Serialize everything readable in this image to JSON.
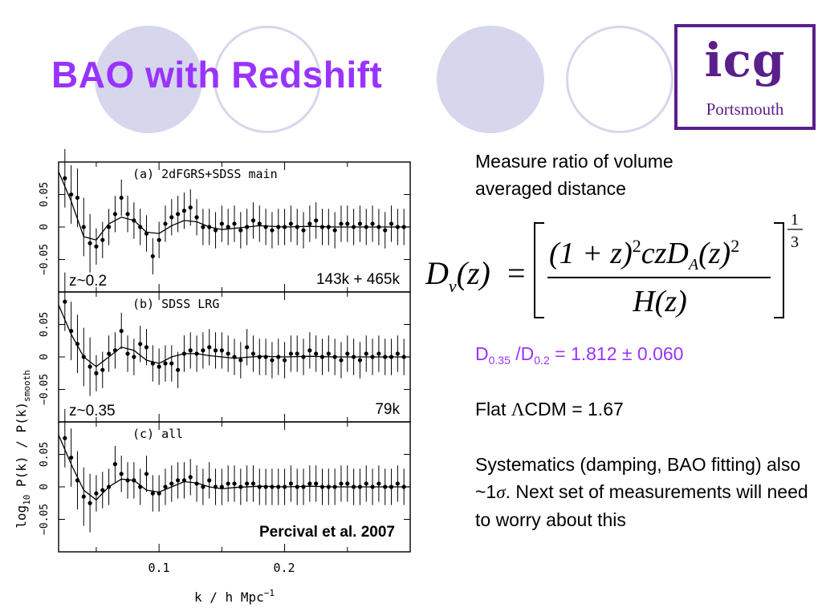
{
  "slide": {
    "title": "BAO with Redshift",
    "accent_color": "#9933ff",
    "circle_color": "#d6d6ec"
  },
  "logo": {
    "main": "icg",
    "sub": "Portsmouth",
    "color": "#5b1f8c"
  },
  "figure": {
    "panels": [
      {
        "label": "(a) 2dFGRS+SDSS main",
        "redshift": "z~0.2",
        "count": "143k + 465k"
      },
      {
        "label": "(b) SDSS LRG",
        "redshift": "z~0.35",
        "count": "79k"
      },
      {
        "label": "(c) all",
        "redshift": "",
        "count": ""
      }
    ],
    "credit": "Percival et al. 2007",
    "y_tick_labels": [
      "0.05",
      "0",
      "−0.05"
    ],
    "y_axis_label": "log",
    "y_axis_label_sub": "10",
    "y_axis_label_rest": "P(k) / P(k)",
    "y_axis_label_sub2": "smooth",
    "x_tick_labels": [
      "0.1",
      "0.2"
    ],
    "x_axis_label": "k / h Mpc",
    "x_axis_label_sup": "−1"
  },
  "text": {
    "intro": "Measure ratio of volume averaged distance",
    "ratio_D1": "D",
    "ratio_sub1": "0.35",
    "ratio_mid": " /D",
    "ratio_sub2": "0.2",
    "ratio_value": " = 1.812 ± 0.060",
    "lcdm_prefix": "Flat ",
    "lcdm_symbol": "Λ",
    "lcdm_suffix": "CDM = 1.67",
    "sys_1": "Systematics (damping, BAO fitting) also ~1",
    "sys_sigma": "σ",
    "sys_2": ". Next set of measurements will need to worry about this"
  },
  "formula": {
    "lhs_D": "D",
    "lhs_sub": "v",
    "lhs_arg": "(z)",
    "equals": "=",
    "num_a": "(1 + z)",
    "num_exp1": "2",
    "num_b": "czD",
    "num_sub": "A",
    "num_c": "(z)",
    "num_exp2": "2",
    "den": "H(z)",
    "pow_num": "1",
    "pow_den": "3"
  },
  "chart_data": {
    "type": "scatter",
    "xlabel": "k / h Mpc^-1",
    "ylabel": "log10 P(k) / P(k)smooth",
    "xlim": [
      0.02,
      0.3
    ],
    "ylim": [
      -0.1,
      0.1
    ],
    "panels": [
      {
        "name": "(a) 2dFGRS+SDSS main",
        "x": [
          0.025,
          0.03,
          0.035,
          0.04,
          0.045,
          0.05,
          0.055,
          0.06,
          0.065,
          0.07,
          0.075,
          0.08,
          0.085,
          0.09,
          0.095,
          0.1,
          0.105,
          0.11,
          0.115,
          0.12,
          0.125,
          0.13,
          0.135,
          0.14,
          0.145,
          0.15,
          0.155,
          0.16,
          0.165,
          0.17,
          0.175,
          0.18,
          0.185,
          0.19,
          0.195,
          0.2,
          0.205,
          0.21,
          0.215,
          0.22,
          0.225,
          0.23,
          0.235,
          0.24,
          0.245,
          0.25,
          0.255,
          0.26,
          0.265,
          0.27,
          0.275,
          0.28,
          0.285,
          0.29,
          0.295
        ],
        "y": [
          0.075,
          0.05,
          0.045,
          0.0,
          -0.025,
          -0.03,
          -0.02,
          0.0,
          0.02,
          0.045,
          0.02,
          0.01,
          0.0,
          -0.01,
          -0.045,
          -0.02,
          0.005,
          0.015,
          0.02,
          0.025,
          0.03,
          0.015,
          0.0,
          0.0,
          -0.005,
          0.005,
          0.0,
          0.005,
          -0.005,
          0.0,
          0.01,
          0.005,
          0.0,
          -0.005,
          0.0,
          0.0,
          0.005,
          0.0,
          -0.005,
          0.005,
          0.01,
          0.0,
          0.0,
          -0.005,
          0.005,
          0.005,
          0.0,
          0.005,
          0.0,
          0.005,
          0.0,
          -0.005,
          0.005,
          0.0,
          0.0
        ],
        "model_x": [
          0.02,
          0.03,
          0.04,
          0.05,
          0.06,
          0.07,
          0.08,
          0.09,
          0.1,
          0.11,
          0.12,
          0.13,
          0.14,
          0.15,
          0.16,
          0.18,
          0.2,
          0.22,
          0.24,
          0.26,
          0.28,
          0.3
        ],
        "model_y": [
          0.085,
          0.04,
          -0.015,
          -0.02,
          0.005,
          0.015,
          0.01,
          -0.008,
          -0.01,
          0.002,
          0.01,
          0.008,
          0.0,
          -0.004,
          -0.002,
          0.002,
          0.0,
          0.001,
          0.0,
          0.0,
          0.0,
          0.0
        ]
      },
      {
        "name": "(b) SDSS LRG",
        "x": [
          0.025,
          0.03,
          0.035,
          0.04,
          0.045,
          0.05,
          0.055,
          0.06,
          0.065,
          0.07,
          0.075,
          0.08,
          0.085,
          0.09,
          0.095,
          0.1,
          0.105,
          0.11,
          0.115,
          0.12,
          0.125,
          0.13,
          0.135,
          0.14,
          0.145,
          0.15,
          0.155,
          0.16,
          0.165,
          0.17,
          0.175,
          0.18,
          0.185,
          0.19,
          0.195,
          0.2,
          0.205,
          0.21,
          0.215,
          0.22,
          0.225,
          0.23,
          0.235,
          0.24,
          0.245,
          0.25,
          0.255,
          0.26,
          0.265,
          0.27,
          0.275,
          0.28,
          0.285,
          0.29,
          0.295
        ],
        "y": [
          0.085,
          0.04,
          0.02,
          0.0,
          -0.015,
          -0.025,
          -0.02,
          0.005,
          0.01,
          0.04,
          0.005,
          0.0,
          0.02,
          0.015,
          -0.01,
          -0.015,
          -0.01,
          -0.01,
          -0.02,
          0.005,
          0.01,
          0.005,
          0.01,
          0.015,
          0.01,
          0.01,
          0.005,
          0.0,
          -0.005,
          0.015,
          0.005,
          0.0,
          0.0,
          -0.005,
          0.0,
          -0.005,
          0.005,
          0.005,
          0.0,
          0.01,
          0.005,
          0.0,
          0.005,
          0.0,
          -0.005,
          0.005,
          0.0,
          -0.005,
          0.005,
          0.0,
          0.005,
          0.0,
          0.0,
          0.005,
          0.0
        ],
        "model_x": [
          0.02,
          0.03,
          0.04,
          0.05,
          0.06,
          0.07,
          0.08,
          0.09,
          0.1,
          0.11,
          0.12,
          0.13,
          0.14,
          0.15,
          0.16,
          0.18,
          0.2,
          0.22,
          0.24,
          0.26,
          0.28,
          0.3
        ],
        "model_y": [
          0.08,
          0.035,
          0.0,
          -0.015,
          0.0,
          0.015,
          0.01,
          -0.005,
          -0.01,
          0.0,
          0.005,
          0.005,
          0.002,
          0.0,
          -0.002,
          0.001,
          0.0,
          0.001,
          0.0,
          0.0,
          0.0,
          0.0
        ]
      },
      {
        "name": "(c) all",
        "x": [
          0.025,
          0.03,
          0.035,
          0.04,
          0.045,
          0.05,
          0.055,
          0.06,
          0.065,
          0.07,
          0.075,
          0.08,
          0.085,
          0.09,
          0.095,
          0.1,
          0.105,
          0.11,
          0.115,
          0.12,
          0.125,
          0.13,
          0.135,
          0.14,
          0.145,
          0.15,
          0.155,
          0.16,
          0.165,
          0.17,
          0.175,
          0.18,
          0.185,
          0.19,
          0.195,
          0.2,
          0.205,
          0.21,
          0.215,
          0.22,
          0.225,
          0.23,
          0.235,
          0.24,
          0.245,
          0.25,
          0.255,
          0.26,
          0.265,
          0.27,
          0.275,
          0.28,
          0.285,
          0.29,
          0.295
        ],
        "y": [
          0.075,
          0.045,
          0.01,
          -0.015,
          -0.025,
          -0.01,
          -0.005,
          0.0,
          0.035,
          0.02,
          0.01,
          0.01,
          0.0,
          0.02,
          -0.01,
          -0.01,
          0.0,
          0.005,
          0.01,
          0.01,
          0.015,
          0.005,
          0.0,
          0.01,
          0.0,
          0.0,
          0.005,
          0.005,
          0.0,
          0.005,
          0.005,
          0.0,
          0.0,
          0.0,
          0.0,
          0.0,
          0.005,
          0.0,
          0.0,
          0.005,
          0.005,
          0.0,
          0.0,
          0.0,
          0.005,
          0.005,
          0.0,
          0.0,
          0.005,
          0.0,
          0.005,
          0.0,
          0.0,
          0.005,
          0.0
        ],
        "model_x": [
          0.02,
          0.03,
          0.04,
          0.05,
          0.06,
          0.07,
          0.08,
          0.09,
          0.1,
          0.11,
          0.12,
          0.13,
          0.14,
          0.15,
          0.16,
          0.18,
          0.2,
          0.22,
          0.24,
          0.26,
          0.28,
          0.3
        ],
        "model_y": [
          0.08,
          0.035,
          -0.005,
          -0.02,
          0.0,
          0.012,
          0.01,
          -0.005,
          -0.008,
          0.0,
          0.008,
          0.006,
          0.0,
          -0.003,
          -0.001,
          0.001,
          0.0,
          0.001,
          0.0,
          0.0,
          0.0,
          0.0
        ]
      }
    ]
  }
}
